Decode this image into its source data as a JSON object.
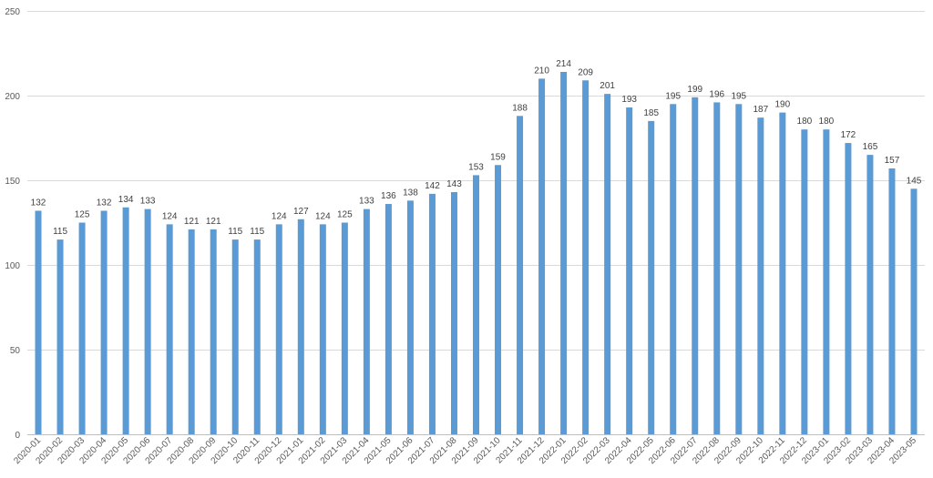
{
  "chart_data": {
    "type": "bar",
    "title": "",
    "xlabel": "",
    "ylabel": "",
    "ylim": [
      0,
      250
    ],
    "yticks": [
      0,
      50,
      100,
      150,
      200,
      250
    ],
    "grid": true,
    "legend": "none",
    "bar_color": "#5b9bd5",
    "categories": [
      "2020-01",
      "2020-02",
      "2020-03",
      "2020-04",
      "2020-05",
      "2020-06",
      "2020-07",
      "2020-08",
      "2020-09",
      "2020-10",
      "2020-11",
      "2020-12",
      "2021-01",
      "2021-02",
      "2021-03",
      "2021-04",
      "2021-05",
      "2021-06",
      "2021-07",
      "2021-08",
      "2021-09",
      "2021-10",
      "2021-11",
      "2021-12",
      "2022-01",
      "2022-02",
      "2022-03",
      "2022-04",
      "2022-05",
      "2022-06",
      "2022-07",
      "2022-08",
      "2022-09",
      "2022-10",
      "2022-11",
      "2022-12",
      "2023-01",
      "2023-02",
      "2023-03",
      "2023-04",
      "2023-05"
    ],
    "values": [
      132,
      115,
      125,
      132,
      134,
      133,
      124,
      121,
      121,
      115,
      115,
      124,
      127,
      124,
      125,
      133,
      136,
      138,
      142,
      143,
      153,
      159,
      188,
      210,
      214,
      209,
      201,
      193,
      185,
      195,
      199,
      196,
      195,
      187,
      190,
      180,
      180,
      172,
      165,
      157,
      145
    ]
  }
}
